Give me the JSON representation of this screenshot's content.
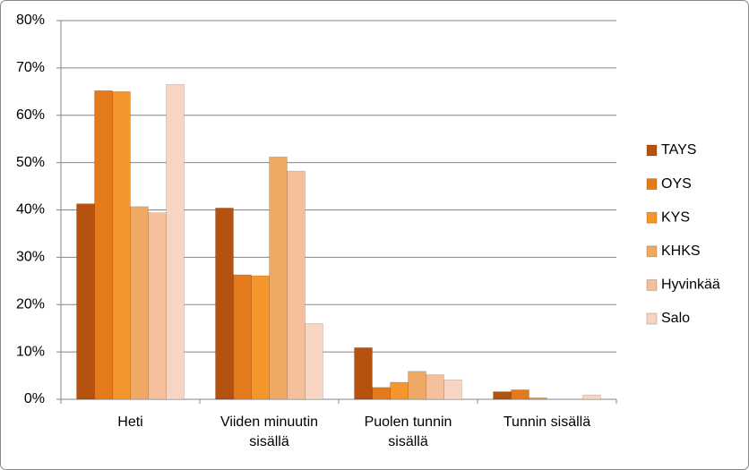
{
  "chart_data": {
    "type": "bar",
    "categories": [
      "Heti",
      "Viiden minuutin sisällä",
      "Puolen tunnin sisällä",
      "Tunnin sisällä"
    ],
    "series": [
      {
        "name": "TAYS",
        "color": "#b5520f",
        "values": [
          41.3,
          40.4,
          10.9,
          1.6
        ]
      },
      {
        "name": "OYS",
        "color": "#e57a1c",
        "values": [
          65.2,
          26.3,
          2.5,
          2.0
        ]
      },
      {
        "name": "KYS",
        "color": "#f5962c",
        "values": [
          65.0,
          26.1,
          3.6,
          0.3
        ]
      },
      {
        "name": "KHKS",
        "color": "#f0a865",
        "values": [
          40.7,
          51.2,
          5.9,
          0
        ]
      },
      {
        "name": "Hyvinkää",
        "color": "#f5bf9c",
        "values": [
          39.4,
          48.2,
          5.2,
          0
        ]
      },
      {
        "name": "Salo",
        "color": "#f8d5c2",
        "values": [
          66.5,
          16.0,
          4.1,
          0.9
        ]
      }
    ],
    "ylim": [
      0,
      80
    ],
    "yticks": [
      {
        "value": 0,
        "label": "0%"
      },
      {
        "value": 10,
        "label": "10%"
      },
      {
        "value": 20,
        "label": "20%"
      },
      {
        "value": 30,
        "label": "30%"
      },
      {
        "value": 40,
        "label": "40%"
      },
      {
        "value": 50,
        "label": "50%"
      },
      {
        "value": 60,
        "label": "60%"
      },
      {
        "value": 70,
        "label": "70%"
      },
      {
        "value": 80,
        "label": "80%"
      }
    ],
    "grid": true,
    "legend": "right"
  }
}
